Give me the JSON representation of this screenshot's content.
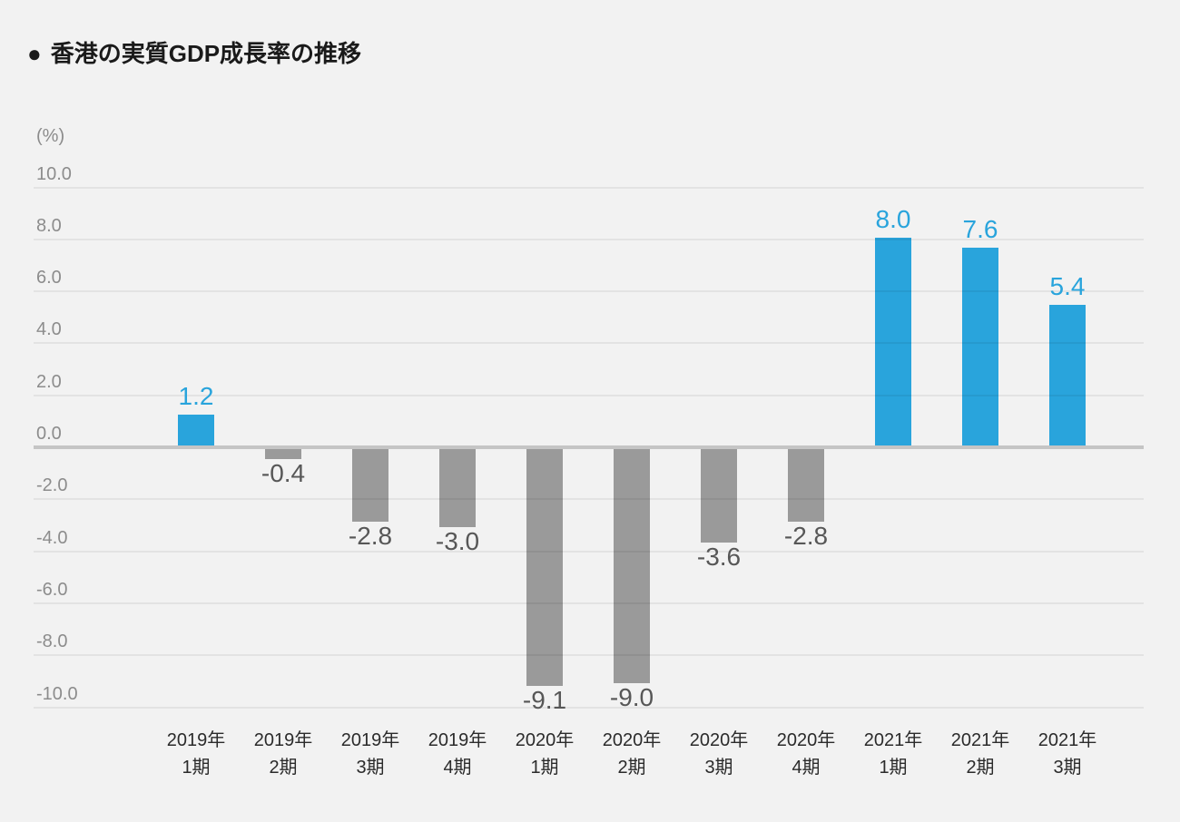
{
  "header": {
    "bullet": "●",
    "title": "香港の実質GDP成長率の推移"
  },
  "chart_data": {
    "type": "bar",
    "title": "香港の実質GDP成長率の推移",
    "unit_label": "(%)",
    "ylabel": "(%)",
    "ylim": [
      -10.0,
      10.0
    ],
    "ytick_step": 2.0,
    "ytick_values": [
      10,
      8,
      6,
      4,
      2,
      0,
      -2,
      -4,
      -6,
      -8,
      -10
    ],
    "ytick_labels": [
      "10.0",
      "8.0",
      "6.0",
      "4.0",
      "2.0",
      "0.0",
      "-2.0",
      "-4.0",
      "-6.0",
      "-8.0",
      "-10.0"
    ],
    "categories": [
      {
        "line1": "2019年",
        "line2": "1期"
      },
      {
        "line1": "2019年",
        "line2": "2期"
      },
      {
        "line1": "2019年",
        "line2": "3期"
      },
      {
        "line1": "2019年",
        "line2": "4期"
      },
      {
        "line1": "2020年",
        "line2": "1期"
      },
      {
        "line1": "2020年",
        "line2": "2期"
      },
      {
        "line1": "2020年",
        "line2": "3期"
      },
      {
        "line1": "2020年",
        "line2": "4期"
      },
      {
        "line1": "2021年",
        "line2": "1期"
      },
      {
        "line1": "2021年",
        "line2": "2期"
      },
      {
        "line1": "2021年",
        "line2": "3期"
      }
    ],
    "values": [
      1.2,
      -0.4,
      -2.8,
      -3.0,
      -9.1,
      -9.0,
      -3.6,
      -2.8,
      8.0,
      7.6,
      5.4
    ],
    "value_labels": [
      "1.2",
      "-0.4",
      "-2.8",
      "-3.0",
      "-9.1",
      "-9.0",
      "-3.6",
      "-2.8",
      "8.0",
      "7.6",
      "5.4"
    ],
    "grid": true,
    "legend_position": "none",
    "colors": {
      "background": "#F2F2F2",
      "positive_bar": "#29A4DC",
      "negative_bar": "#9A9A9A",
      "positive_label": "#29A4DC",
      "negative_label": "#575757",
      "axis_text": "#8C8C8C",
      "category_text": "#2B2B2B",
      "gridline_overlay": "rgba(0,0,0,0.06)",
      "zero_line": "#C5C5C5",
      "title_text": "#1A1A1A"
    }
  }
}
